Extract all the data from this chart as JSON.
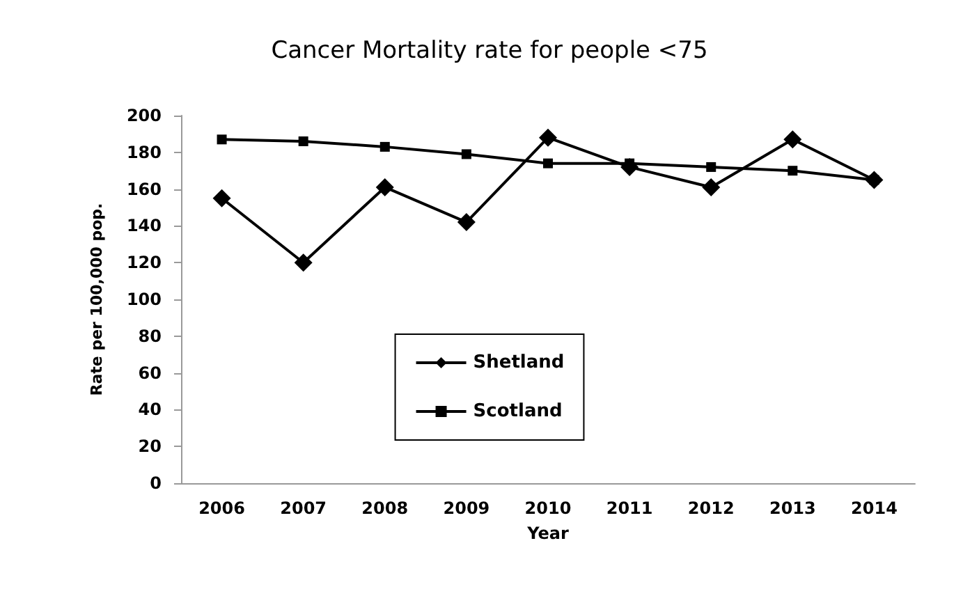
{
  "chart_data": {
    "type": "line",
    "title": "Cancer Mortality rate for people <75",
    "xlabel": "Year",
    "ylabel": "Rate per 100,000 pop.",
    "categories": [
      "2006",
      "2007",
      "2008",
      "2009",
      "2010",
      "2011",
      "2012",
      "2013",
      "2014"
    ],
    "series": [
      {
        "name": "Shetland",
        "color": "#000000",
        "marker": "diamond",
        "values": [
          155,
          120,
          161,
          142,
          188,
          172,
          161,
          187,
          165
        ]
      },
      {
        "name": "Scotland",
        "color": "#000000",
        "marker": "square",
        "values": [
          187,
          186,
          183,
          179,
          174,
          174,
          172,
          170,
          165
        ]
      }
    ],
    "ylim": [
      0,
      200
    ],
    "yticks": [
      0,
      20,
      40,
      60,
      80,
      100,
      120,
      140,
      160,
      180,
      200
    ],
    "grid": false,
    "legend": "bottom",
    "line_style": "solid"
  }
}
